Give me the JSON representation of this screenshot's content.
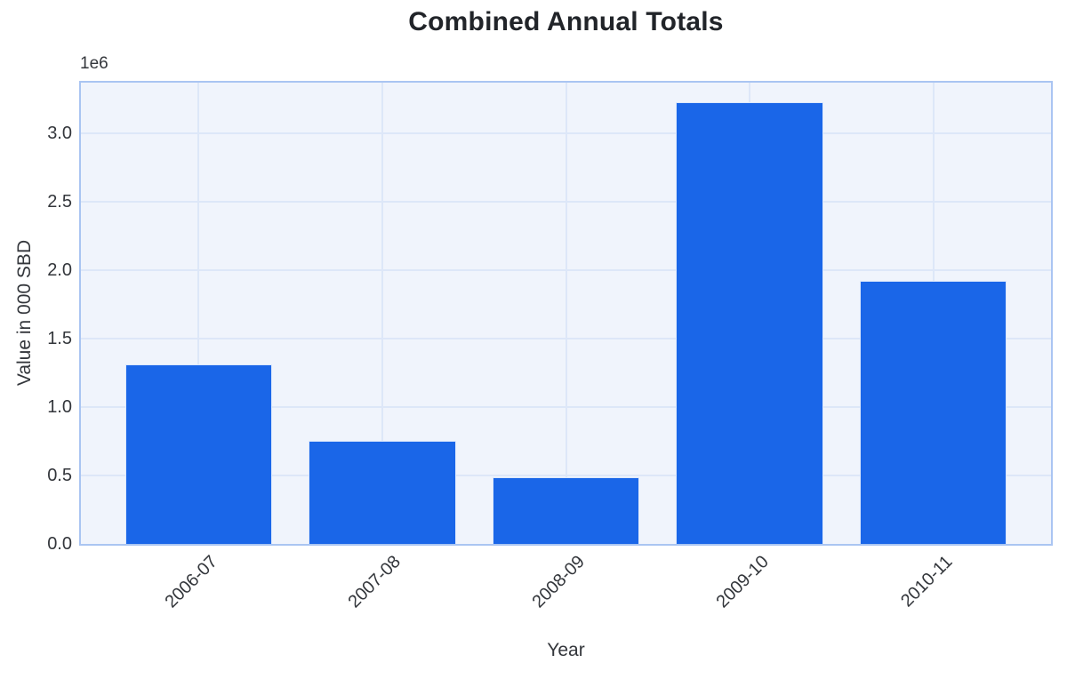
{
  "chart_data": {
    "type": "bar",
    "title": "Combined Annual Totals",
    "xlabel": "Year",
    "ylabel": "Value in 000 SBD",
    "y_offset_text": "1e6",
    "categories": [
      "2006-07",
      "2007-08",
      "2008-09",
      "2009-10",
      "2010-11"
    ],
    "values": [
      1310000,
      750000,
      490000,
      3230000,
      1920000
    ],
    "yticks": [
      {
        "label": "0.0",
        "value": 0
      },
      {
        "label": "0.5",
        "value": 500000
      },
      {
        "label": "1.0",
        "value": 1000000
      },
      {
        "label": "1.5",
        "value": 1500000
      },
      {
        "label": "2.0",
        "value": 2000000
      },
      {
        "label": "2.5",
        "value": 2500000
      },
      {
        "label": "3.0",
        "value": 3000000
      }
    ],
    "ylim": [
      0,
      3370000
    ],
    "grid": true,
    "legend": false,
    "bar_relative_width": 0.8,
    "x_margin_units": 0.64,
    "colors": {
      "bar": "#1a66e8",
      "bar_edge": "#ffffff",
      "plot_background": "#f0f4fc",
      "gridline": "#dde7f8",
      "plot_border": "#aac5f2",
      "figure_background": "#ffffff",
      "title_text": "#212429",
      "tick_text": "#33363b"
    }
  }
}
